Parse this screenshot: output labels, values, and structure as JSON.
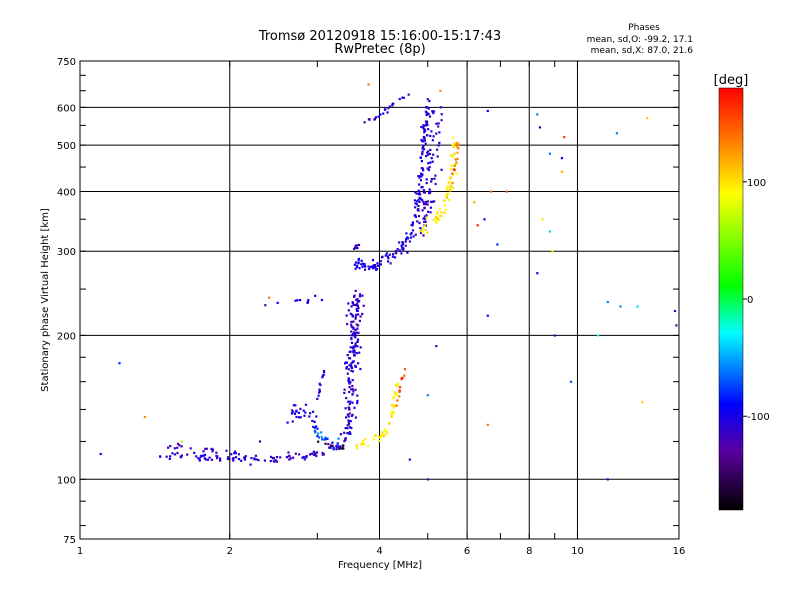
{
  "chart_data": {
    "type": "scatter",
    "title": "Tromsø 20120918 15:16:00-15:17:43",
    "subtitle": "RwPretec (8p)",
    "stats": {
      "heading": "Phases",
      "line_o": "mean, sd,O: -99.2, 17.1",
      "line_x": "mean, sd,X:  87.0, 21.6"
    },
    "xlabel": "Frequency [MHz]",
    "ylabel": "Stationary phase Virtual Height [km]",
    "x_scale": "log",
    "y_scale": "log",
    "xlim": [
      1,
      16
    ],
    "ylim": [
      75,
      750
    ],
    "x_ticks": [
      {
        "v": 1,
        "label": "1"
      },
      {
        "v": 2,
        "label": "2"
      },
      {
        "v": 4,
        "label": "4"
      },
      {
        "v": 6,
        "label": "6"
      },
      {
        "v": 8,
        "label": "8"
      },
      {
        "v": 10,
        "label": "10"
      },
      {
        "v": 16,
        "label": "16"
      }
    ],
    "y_ticks": [
      {
        "v": 75,
        "label": "75"
      },
      {
        "v": 100,
        "label": "100"
      },
      {
        "v": 200,
        "label": "200"
      },
      {
        "v": 300,
        "label": "300"
      },
      {
        "v": 400,
        "label": "400"
      },
      {
        "v": 500,
        "label": "500"
      },
      {
        "v": 600,
        "label": "600"
      },
      {
        "v": 750,
        "label": "750"
      }
    ],
    "grid": true,
    "colorbar": {
      "label": "[deg]",
      "range": [
        -180,
        180
      ],
      "ticks": [
        {
          "v": 100,
          "label": "100"
        },
        {
          "v": 0,
          "label": "0"
        },
        {
          "v": -100,
          "label": "-100"
        }
      ]
    },
    "segments": [
      {
        "pts": [
          [
            1.45,
            113
          ],
          [
            1.6,
            112
          ],
          [
            1.8,
            111
          ],
          [
            2.0,
            110
          ],
          [
            2.2,
            110
          ],
          [
            2.5,
            111
          ],
          [
            2.8,
            112
          ],
          [
            3.0,
            113
          ],
          [
            3.2,
            115
          ],
          [
            3.35,
            118
          ],
          [
            3.45,
            122
          ]
        ],
        "phase": -110,
        "n": 110,
        "jy": 0.012
      },
      {
        "pts": [
          [
            1.5,
            118
          ],
          [
            1.7,
            116
          ],
          [
            1.9,
            114
          ],
          [
            2.1,
            113
          ]
        ],
        "phase": -115,
        "n": 22,
        "jy": 0.01
      },
      {
        "pts": [
          [
            3.45,
            125
          ],
          [
            3.5,
            150
          ],
          [
            3.52,
            175
          ],
          [
            3.55,
            200
          ],
          [
            3.58,
            230
          ],
          [
            3.6,
            245
          ]
        ],
        "phase": -110,
        "n": 170,
        "jy": 0.03,
        "jx": 0.02
      },
      {
        "pts": [
          [
            2.6,
            135
          ],
          [
            2.7,
            140
          ],
          [
            2.8,
            138
          ],
          [
            2.9,
            135
          ],
          [
            3.0,
            130
          ]
        ],
        "phase": -100,
        "n": 30,
        "jy": 0.03
      },
      {
        "pts": [
          [
            2.9,
            128
          ],
          [
            3.0,
            125
          ],
          [
            3.1,
            122
          ],
          [
            3.2,
            120
          ],
          [
            3.3,
            119
          ]
        ],
        "phase": -70,
        "n": 18,
        "jy": 0.015
      },
      {
        "pts": [
          [
            3.0,
            120
          ],
          [
            3.2,
            118
          ],
          [
            3.4,
            116
          ]
        ],
        "phase": -150,
        "n": 10,
        "jy": 0.01
      },
      {
        "pts": [
          [
            3.0,
            150
          ],
          [
            3.05,
            160
          ],
          [
            3.1,
            165
          ]
        ],
        "phase": -105,
        "n": 12,
        "jy": 0.02
      },
      {
        "pts": [
          [
            3.6,
            118
          ],
          [
            3.8,
            120
          ],
          [
            4.0,
            122
          ],
          [
            4.1,
            125
          ],
          [
            4.2,
            130
          ],
          [
            4.25,
            140
          ],
          [
            4.3,
            150
          ],
          [
            4.35,
            160
          ]
        ],
        "phase": 95,
        "n": 50,
        "jy": 0.012
      },
      {
        "pts": [
          [
            4.3,
            140
          ],
          [
            4.4,
            155
          ],
          [
            4.45,
            165
          ],
          [
            4.5,
            175
          ]
        ],
        "phase": 150,
        "n": 12,
        "jy": 0.015
      },
      {
        "pts": [
          [
            2.3,
            230
          ],
          [
            2.5,
            232
          ],
          [
            2.7,
            236
          ],
          [
            2.9,
            238
          ],
          [
            3.1,
            240
          ]
        ],
        "phase": -100,
        "n": 10,
        "jy": 0.01
      },
      {
        "pts": [
          [
            3.55,
            285
          ],
          [
            3.8,
            283
          ],
          [
            4.0,
            284
          ],
          [
            4.2,
            290
          ],
          [
            4.4,
            300
          ],
          [
            4.6,
            320
          ],
          [
            4.7,
            350
          ],
          [
            4.8,
            400
          ],
          [
            4.85,
            450
          ],
          [
            4.9,
            500
          ],
          [
            4.95,
            560
          ],
          [
            5.0,
            620
          ]
        ],
        "phase": -105,
        "n": 140,
        "jy": 0.02,
        "jx": 0.01
      },
      {
        "pts": [
          [
            3.6,
            280
          ],
          [
            3.8,
            278
          ],
          [
            4.0,
            280
          ]
        ],
        "phase": -100,
        "n": 25,
        "jy": 0.01
      },
      {
        "pts": [
          [
            4.8,
            320
          ],
          [
            4.95,
            360
          ],
          [
            5.05,
            420
          ],
          [
            5.1,
            480
          ],
          [
            5.15,
            540
          ],
          [
            5.2,
            600
          ]
        ],
        "phase": -110,
        "n": 90,
        "jy": 0.03,
        "jx": 0.025
      },
      {
        "pts": [
          [
            4.8,
            330
          ],
          [
            5.0,
            340
          ],
          [
            5.2,
            350
          ],
          [
            5.4,
            370
          ],
          [
            5.5,
            400
          ],
          [
            5.6,
            440
          ],
          [
            5.65,
            480
          ],
          [
            5.7,
            520
          ]
        ],
        "phase": 95,
        "n": 70,
        "jy": 0.02,
        "jx": 0.012
      },
      {
        "pts": [
          [
            5.6,
            420
          ],
          [
            5.7,
            460
          ],
          [
            5.75,
            500
          ]
        ],
        "phase": 140,
        "n": 15,
        "jy": 0.02
      },
      {
        "pts": [
          [
            3.7,
            560
          ],
          [
            3.9,
            570
          ],
          [
            4.0,
            580
          ],
          [
            4.2,
            600
          ],
          [
            4.4,
            620
          ],
          [
            4.6,
            640
          ]
        ],
        "phase": -110,
        "n": 22,
        "jy": 0.008
      },
      {
        "pts": [
          [
            3.55,
            300
          ],
          [
            3.6,
            310
          ],
          [
            3.7,
            315
          ]
        ],
        "phase": -115,
        "n": 8,
        "jy": 0.01
      }
    ],
    "points": [
      [
        1.1,
        113,
        -100
      ],
      [
        1.2,
        175,
        -80
      ],
      [
        1.35,
        135,
        130
      ],
      [
        1.6,
        120,
        60
      ],
      [
        2.3,
        120,
        -110
      ],
      [
        2.4,
        240,
        140
      ],
      [
        3.8,
        670,
        140
      ],
      [
        4.5,
        170,
        150
      ],
      [
        4.6,
        110,
        -110
      ],
      [
        5.0,
        150,
        -60
      ],
      [
        5.0,
        100,
        -120
      ],
      [
        5.2,
        190,
        -110
      ],
      [
        5.3,
        650,
        130
      ],
      [
        6.2,
        380,
        120
      ],
      [
        6.3,
        340,
        170
      ],
      [
        6.5,
        350,
        -100
      ],
      [
        6.6,
        220,
        -100
      ],
      [
        6.6,
        130,
        140
      ],
      [
        6.6,
        590,
        -100
      ],
      [
        6.7,
        400,
        140
      ],
      [
        6.9,
        310,
        -80
      ],
      [
        7.2,
        400,
        150
      ],
      [
        8.3,
        580,
        -60
      ],
      [
        8.3,
        270,
        -100
      ],
      [
        8.4,
        545,
        -100
      ],
      [
        8.5,
        350,
        100
      ],
      [
        8.8,
        480,
        -60
      ],
      [
        8.8,
        330,
        -40
      ],
      [
        8.9,
        300,
        100
      ],
      [
        9.0,
        200,
        -110
      ],
      [
        9.3,
        470,
        -100
      ],
      [
        9.3,
        440,
        120
      ],
      [
        9.4,
        520,
        160
      ],
      [
        9.7,
        160,
        -70
      ],
      [
        11.0,
        200,
        -30
      ],
      [
        11.5,
        100,
        -110
      ],
      [
        12.0,
        530,
        -60
      ],
      [
        12.2,
        230,
        -60
      ],
      [
        13.2,
        230,
        -40
      ],
      [
        13.5,
        145,
        110
      ],
      [
        13.8,
        570,
        110
      ],
      [
        15.8,
        210,
        -120
      ],
      [
        15.7,
        225,
        -110
      ],
      [
        11.5,
        235,
        -60
      ]
    ]
  }
}
